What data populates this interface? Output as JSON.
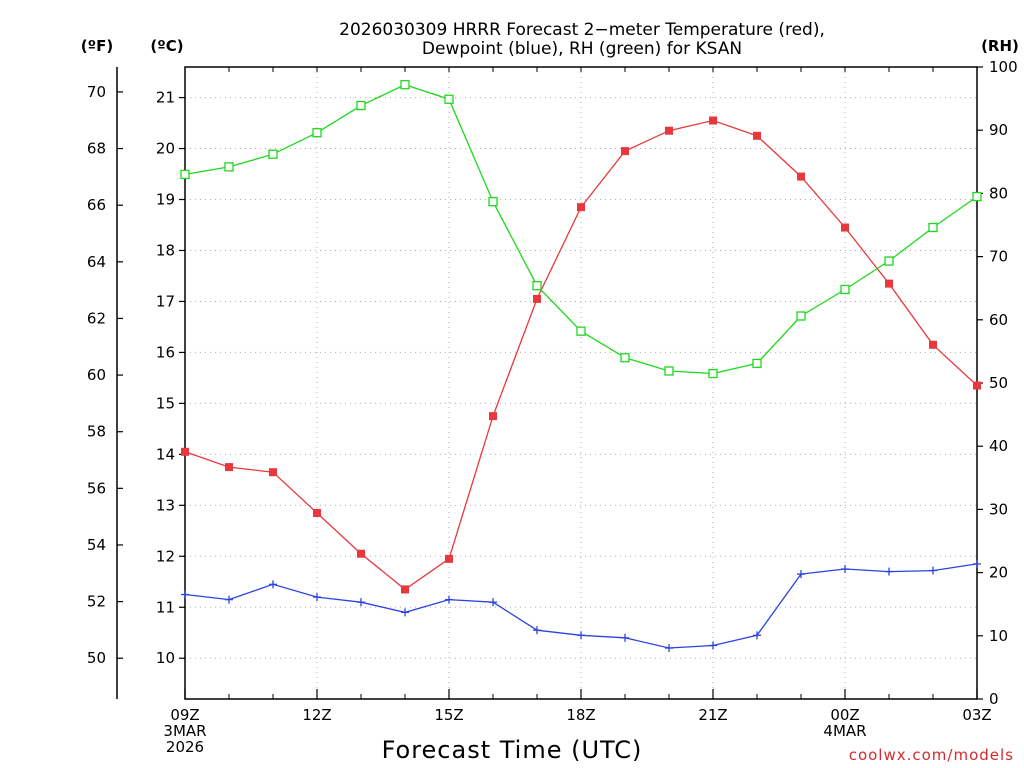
{
  "chart_data": {
    "type": "line",
    "title_line1": "2026030309 HRRR Forecast 2−meter Temperature (red),",
    "title_line2": "Dewpoint (blue), RH (green) for KSAN",
    "xlabel": "Forecast Time (UTC)",
    "credit": "coolwx.com/models",
    "units": {
      "fahrenheit": "(ºF)",
      "celsius": "(ºC)",
      "rh": "(RH)"
    },
    "x": [
      9,
      10,
      11,
      12,
      13,
      14,
      15,
      16,
      17,
      18,
      19,
      20,
      21,
      22,
      23,
      24,
      25,
      26,
      27
    ],
    "xlim": [
      9,
      27
    ],
    "x_ticks": [
      {
        "x": 9,
        "lines": [
          "09Z",
          "3MAR",
          "2026"
        ]
      },
      {
        "x": 12,
        "lines": [
          "12Z"
        ]
      },
      {
        "x": 15,
        "lines": [
          "15Z"
        ]
      },
      {
        "x": 18,
        "lines": [
          "18Z"
        ]
      },
      {
        "x": 21,
        "lines": [
          "21Z"
        ]
      },
      {
        "x": 24,
        "lines": [
          "00Z",
          "4MAR"
        ]
      },
      {
        "x": 27,
        "lines": [
          "03Z"
        ]
      }
    ],
    "celsius_axis": {
      "ylim": [
        9.2,
        21.6
      ],
      "ticks": [
        "10",
        "11",
        "12",
        "13",
        "14",
        "15",
        "16",
        "17",
        "18",
        "19",
        "20",
        "21"
      ]
    },
    "fahrenheit_axis": {
      "ylim": [
        48.56,
        70.88
      ],
      "ticks": [
        "50",
        "52",
        "54",
        "56",
        "58",
        "60",
        "62",
        "64",
        "66",
        "68",
        "70"
      ]
    },
    "rh_axis": {
      "ylim": [
        0,
        100
      ],
      "ticks": [
        "0",
        "10",
        "20",
        "30",
        "40",
        "50",
        "60",
        "70",
        "80",
        "90",
        "100"
      ]
    },
    "series": [
      {
        "name": "Temperature (°C)",
        "color": "#e8383d",
        "axis": "celsius",
        "marker": "filled-square",
        "values": [
          14.05,
          13.75,
          13.65,
          12.85,
          12.05,
          11.35,
          11.95,
          14.75,
          17.05,
          18.85,
          19.95,
          20.35,
          20.55,
          20.25,
          19.45,
          18.45,
          17.35,
          16.15,
          15.35
        ]
      },
      {
        "name": "Dewpoint (°C)",
        "color": "#2b43e0",
        "axis": "celsius",
        "marker": "plus",
        "values": [
          11.25,
          11.15,
          11.45,
          11.2,
          11.1,
          10.9,
          11.15,
          11.1,
          10.55,
          10.45,
          10.4,
          10.2,
          10.25,
          10.45,
          11.65,
          11.75,
          11.7,
          11.72,
          11.85
        ]
      },
      {
        "name": "RH (%)",
        "color": "#1ed81e",
        "axis": "rh",
        "marker": "open-square",
        "values": [
          83,
          84.2,
          86.2,
          89.6,
          93.9,
          97.2,
          94.9,
          78.7,
          65.4,
          58.2,
          54,
          51.9,
          51.5,
          53.1,
          60.6,
          64.8,
          69.3,
          74.6,
          79.5
        ]
      }
    ]
  }
}
